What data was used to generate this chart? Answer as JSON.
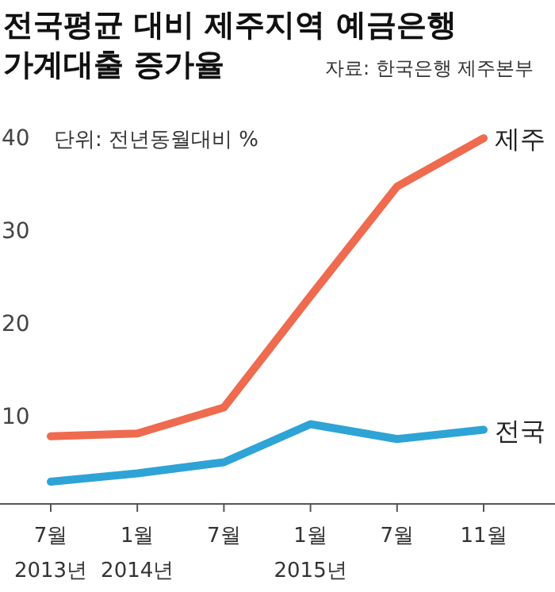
{
  "chart_data": {
    "type": "line",
    "title": "전국평균 대비 제주지역 예금은행\n가계대출 증가율",
    "annotations": [
      "자료: 한국은행 제주본부",
      "단위: 전년동월대비 %"
    ],
    "categories": [
      "7월\n2013년",
      "1월\n2014년",
      "7월",
      "1월\n2015년",
      "7월",
      "11월"
    ],
    "series": [
      {
        "name": "제주",
        "color": "#ef6b4f",
        "values": [
          7.8,
          8.1,
          10.9,
          22.9,
          34.7,
          39.9
        ]
      },
      {
        "name": "전국",
        "color": "#2ea3d6",
        "values": [
          2.9,
          3.8,
          5.0,
          9.1,
          7.5,
          8.5
        ]
      }
    ],
    "ylim": [
      0,
      40
    ],
    "yticks": [
      10,
      20,
      30,
      40
    ],
    "grid": false,
    "marker": "none",
    "line_style": "solid"
  }
}
